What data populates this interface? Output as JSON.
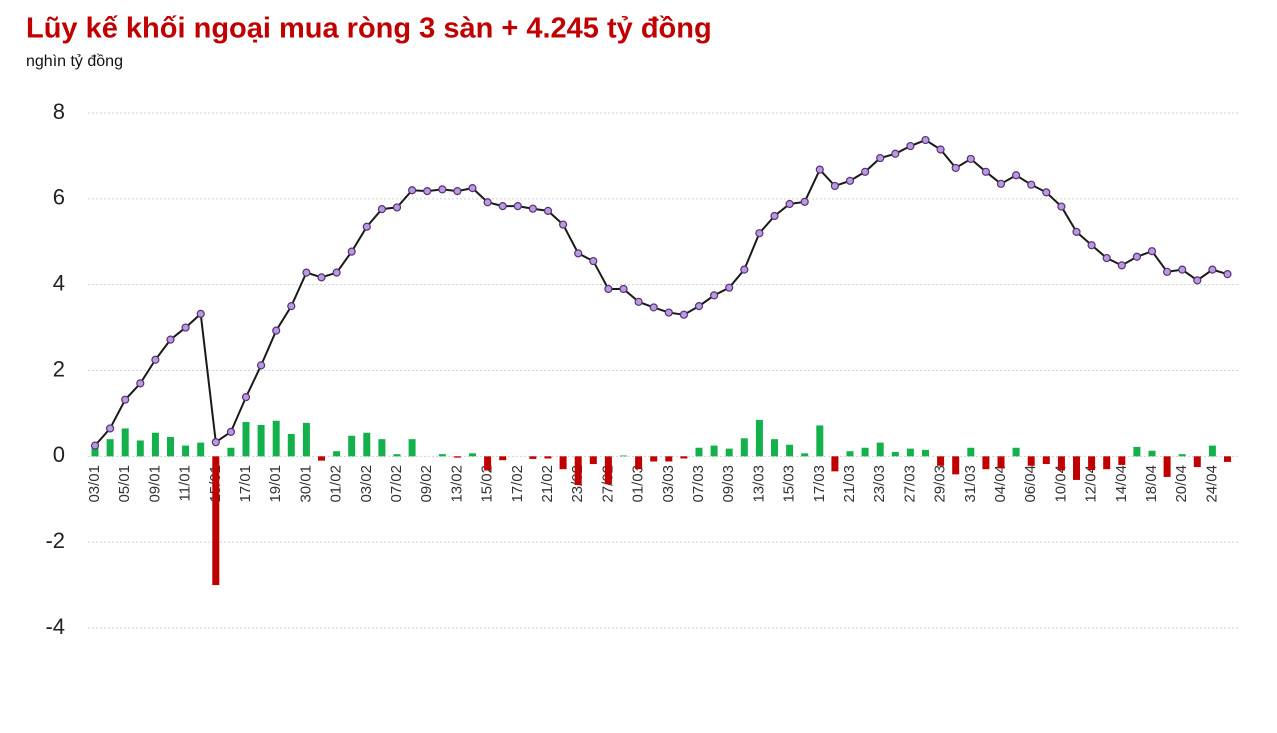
{
  "chart_data": {
    "type": "bar_line",
    "title": "Lũy kế khối ngoại mua ròng 3 sàn + 4.245 tỷ đồng",
    "y_label": "nghìn tỷ đồng",
    "categories": [
      "03/01",
      null,
      "05/01",
      null,
      "09/01",
      null,
      "11/01",
      null,
      "15/01",
      null,
      "17/01",
      null,
      "19/01",
      null,
      "30/01",
      null,
      "01/02",
      null,
      "03/02",
      null,
      "07/02",
      null,
      "09/02",
      null,
      "13/02",
      null,
      "15/02",
      null,
      "17/02",
      null,
      "21/02",
      null,
      "23/02",
      null,
      "27/02",
      null,
      "01/03",
      null,
      "03/03",
      null,
      "07/03",
      null,
      "09/03",
      null,
      "13/03",
      null,
      "15/03",
      null,
      "17/03",
      null,
      "21/03",
      null,
      "23/03",
      null,
      "27/03",
      null,
      "29/03",
      null,
      "31/03",
      null,
      "04/04",
      null,
      "06/04",
      null,
      "10/04",
      null,
      "12/04",
      null,
      "14/04",
      null,
      "18/04",
      null,
      "20/04",
      null,
      "24/04",
      null
    ],
    "series": [
      {
        "type": "bar",
        "positive_color": "#13b04b",
        "negative_color": "#c00000",
        "values": [
          0.2,
          0.4,
          0.65,
          0.37,
          0.55,
          0.45,
          0.25,
          0.32,
          -3.0,
          0.2,
          0.8,
          0.73,
          0.83,
          0.52,
          0.78,
          -0.1,
          0.12,
          0.48,
          0.55,
          0.4,
          0.05,
          0.4,
          0.0,
          0.05,
          -0.03,
          0.07,
          -0.33,
          -0.09,
          0.0,
          -0.06,
          -0.05,
          -0.3,
          -0.67,
          -0.18,
          -0.65,
          0.02,
          -0.3,
          -0.12,
          -0.12,
          -0.05,
          0.2,
          0.25,
          0.18,
          0.42,
          0.85,
          0.4,
          0.27,
          0.07,
          0.72,
          -0.35,
          0.12,
          0.2,
          0.32,
          0.1,
          0.18,
          0.15,
          -0.22,
          -0.42,
          0.2,
          -0.3,
          -0.28,
          0.2,
          -0.22,
          -0.18,
          -0.33,
          -0.55,
          -0.32,
          -0.3,
          -0.2,
          0.22,
          0.13,
          -0.48,
          0.05,
          -0.25,
          0.25,
          -0.13
        ]
      },
      {
        "type": "line",
        "color": "#1a1a1a",
        "marker_fill": "#b39ddb",
        "marker_stroke": "#5e2d79",
        "values": [
          0.25,
          0.65,
          1.32,
          1.7,
          2.25,
          2.72,
          3.0,
          3.32,
          0.33,
          0.57,
          1.38,
          2.12,
          2.93,
          3.5,
          4.28,
          4.17,
          4.28,
          4.77,
          5.35,
          5.76,
          5.8,
          6.2,
          6.18,
          6.22,
          6.18,
          6.25,
          5.92,
          5.83,
          5.83,
          5.77,
          5.72,
          5.4,
          4.73,
          4.55,
          3.9,
          3.9,
          3.6,
          3.47,
          3.35,
          3.3,
          3.5,
          3.75,
          3.93,
          4.35,
          5.2,
          5.6,
          5.88,
          5.93,
          6.68,
          6.3,
          6.42,
          6.63,
          6.95,
          7.05,
          7.23,
          7.37,
          7.15,
          6.72,
          6.93,
          6.63,
          6.35,
          6.55,
          6.33,
          6.15,
          5.82,
          5.23,
          4.92,
          4.62,
          4.45,
          4.65,
          4.78,
          4.3,
          4.35,
          4.1,
          4.35,
          4.245
        ]
      }
    ],
    "ylim": [
      -4,
      8
    ],
    "yticks": [
      -4,
      -2,
      0,
      2,
      4,
      6,
      8
    ],
    "grid": true
  }
}
